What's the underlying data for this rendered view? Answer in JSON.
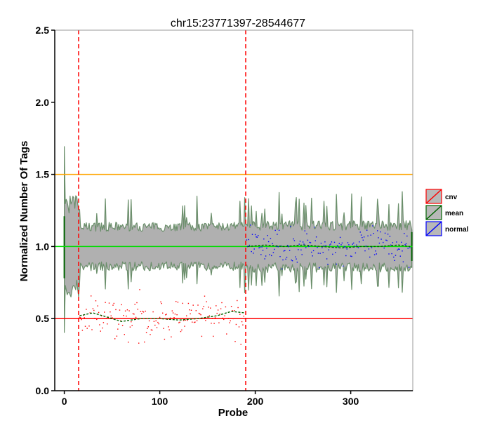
{
  "chart_data": {
    "type": "line",
    "title": "chr15:23771397-28544677",
    "xlabel": "Probe",
    "ylabel": "Normalized Number Of Tags",
    "xlim": [
      -10,
      365
    ],
    "ylim": [
      0,
      2.5
    ],
    "x_ticks": [
      0,
      100,
      200,
      300
    ],
    "y_ticks": [
      0.0,
      0.5,
      1.0,
      1.5,
      2.0,
      2.5
    ],
    "y_tick_labels": [
      "0.0",
      "0.5",
      "1.0",
      "1.5",
      "2.0",
      "2.5"
    ],
    "grid": false,
    "legend_position": "right",
    "legend": [
      {
        "label": "cnv",
        "color": "#ff0000"
      },
      {
        "label": "mean",
        "color": "#006400"
      },
      {
        "label": "normal",
        "color": "#0000ff"
      }
    ],
    "reference_lines": [
      {
        "y": 1.5,
        "color": "#ffa500"
      },
      {
        "y": 1.0,
        "color": "#00dd00"
      },
      {
        "y": 0.5,
        "color": "#ff0000"
      }
    ],
    "cnv_region_bounds": [
      15,
      190
    ],
    "cnv_region_color": "#ff0000",
    "n_probes": 364,
    "band": {
      "color_fill": "#b0b0b0",
      "color_edge": "#6b8f6b",
      "segments": [
        {
          "x_start": 0,
          "x_end": 15,
          "lower": 0.7,
          "upper": 1.3
        },
        {
          "x_start": 15,
          "x_end": 190,
          "lower": 0.86,
          "upper": 1.14
        },
        {
          "x_start": 190,
          "x_end": 364,
          "lower": 0.85,
          "upper": 1.15
        }
      ]
    },
    "series": [
      {
        "name": "cnv",
        "type": "scatter",
        "color": "#ff0000",
        "x_range": [
          16,
          189
        ],
        "center": 0.5,
        "spread": 0.09
      },
      {
        "name": "mean",
        "type": "line",
        "color": "#006400",
        "segments": [
          {
            "x": [
              16,
              30,
              45,
              60,
              80,
              100,
              120,
              140,
              160,
              175,
              189
            ],
            "y": [
              0.52,
              0.54,
              0.51,
              0.48,
              0.5,
              0.5,
              0.49,
              0.5,
              0.52,
              0.55,
              0.54
            ]
          },
          {
            "x": [
              192,
              210,
              230,
              250,
              270,
              290,
              310,
              330,
              350,
              362
            ],
            "y": [
              1.0,
              1.01,
              1.0,
              1.01,
              1.0,
              0.99,
              1.0,
              1.0,
              1.01,
              1.0
            ]
          }
        ]
      },
      {
        "name": "normal",
        "type": "scatter",
        "color": "#0000ff",
        "x_range": [
          191,
          362
        ],
        "center": 1.0,
        "spread": 0.08
      }
    ]
  }
}
